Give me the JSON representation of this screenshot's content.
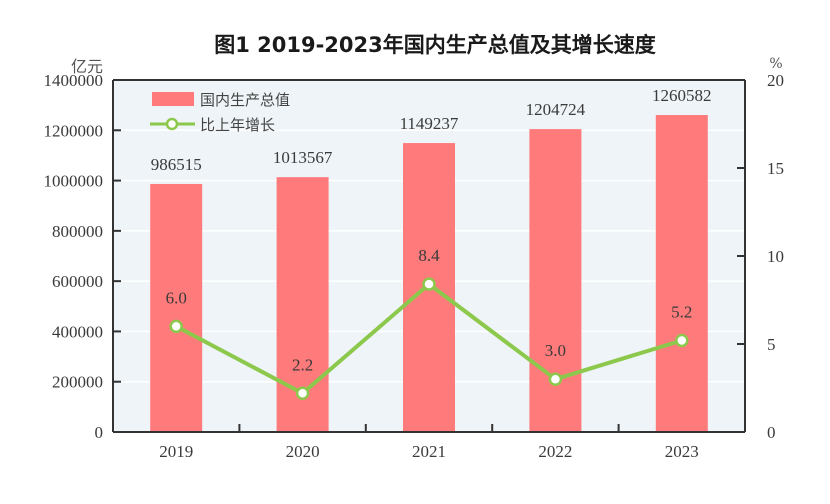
{
  "chart_data": {
    "type": "bar",
    "title": "图1   2019-2023年国内生产总值及其增长速度",
    "categories": [
      "2019",
      "2020",
      "2021",
      "2022",
      "2023"
    ],
    "series": [
      {
        "name": "国内生产总值",
        "type": "bar",
        "axis": "left",
        "color": "#ff7b7b",
        "values": [
          986515,
          1013567,
          1149237,
          1204724,
          1260582
        ],
        "labels": [
          "986515",
          "1013567",
          "1149237",
          "1204724",
          "1260582"
        ]
      },
      {
        "name": "比上年增长",
        "type": "line",
        "axis": "right",
        "color": "#8cc84b",
        "values": [
          6.0,
          2.2,
          8.4,
          3.0,
          5.2
        ],
        "labels": [
          "6.0",
          "2.2",
          "8.4",
          "3.0",
          "5.2"
        ]
      }
    ],
    "y_left": {
      "unit": "亿元",
      "ylim": [
        0,
        1400000
      ],
      "ticks": [
        0,
        200000,
        400000,
        600000,
        800000,
        1000000,
        1200000,
        1400000
      ],
      "tick_labels": [
        "0",
        "200000",
        "400000",
        "600000",
        "800000",
        "1000000",
        "1200000",
        "1400000"
      ]
    },
    "y_right": {
      "unit": "%",
      "ylim": [
        0,
        20
      ],
      "ticks": [
        0,
        5,
        10,
        15,
        20
      ],
      "tick_labels": [
        "0",
        "5",
        "10",
        "15",
        "20"
      ]
    },
    "xlabel": "",
    "grid": true,
    "legend": {
      "position": "top-left",
      "entries": [
        "国内生产总值",
        "比上年增长"
      ]
    },
    "colors": {
      "plot_background": "#eef4f8",
      "gridline": "#ffffff",
      "axis": "#333333"
    }
  }
}
